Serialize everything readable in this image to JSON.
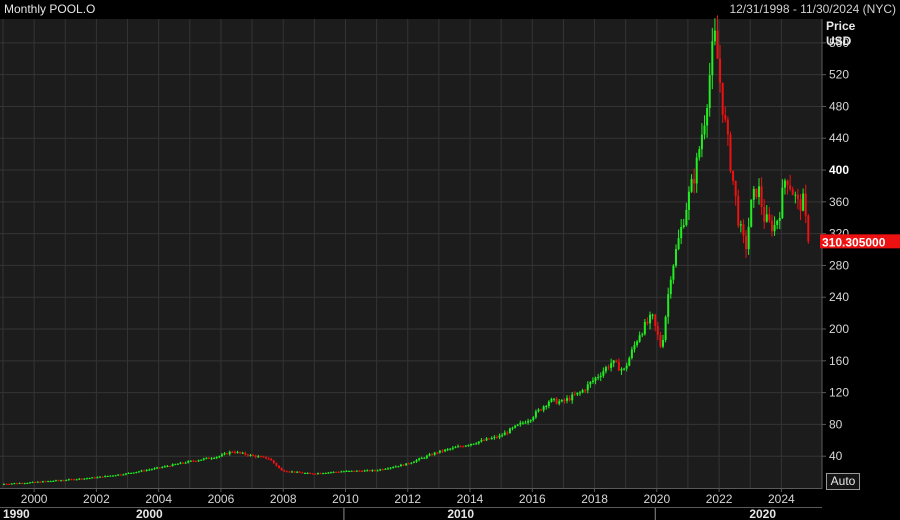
{
  "header": {
    "title": "Monthly POOL.O",
    "range": "12/31/1998 - 11/30/2024 (NYC)"
  },
  "axis": {
    "price_label": "Price",
    "currency_label": "USD",
    "auto_label": "Auto"
  },
  "colors": {
    "background": "#000000",
    "plot": "#1c1c1c",
    "grid": "#343434",
    "up": "#22ee22",
    "down": "#ee1111",
    "last_tag": "#ee1111"
  },
  "chart_data": {
    "type": "candlestick",
    "title": "Monthly POOL.O",
    "ylabel": "Price USD",
    "ylim": [
      0,
      590
    ],
    "yticks": [
      40,
      80,
      120,
      160,
      200,
      240,
      280,
      320,
      360,
      400,
      440,
      480,
      520,
      560
    ],
    "yticks_bold": [
      400
    ],
    "xlim": [
      1999.0,
      2024.92
    ],
    "xticks": [
      "2000",
      "2002",
      "2004",
      "2006",
      "2008",
      "2010",
      "2012",
      "2014",
      "2016",
      "2018",
      "2020",
      "2022",
      "2024"
    ],
    "decades": [
      {
        "label": "1990",
        "x": 1999.0
      },
      {
        "label": "2000",
        "x": 2003.7
      },
      {
        "label": "2010",
        "x": 2013.7
      },
      {
        "label": "2020",
        "x": 2023.4
      }
    ],
    "decade_dividers": [
      2009.95,
      2019.95
    ],
    "last_value": "310.305000",
    "last_price": 310.3,
    "grid": true,
    "anchors": [
      [
        1999.0,
        5
      ],
      [
        2000.0,
        7
      ],
      [
        2001.0,
        10
      ],
      [
        2002.0,
        13
      ],
      [
        2003.0,
        18
      ],
      [
        2004.0,
        25
      ],
      [
        2005.0,
        33
      ],
      [
        2006.0,
        40
      ],
      [
        2006.4,
        46
      ],
      [
        2007.0,
        41
      ],
      [
        2007.6,
        37
      ],
      [
        2008.0,
        22
      ],
      [
        2008.9,
        18
      ],
      [
        2009.3,
        19
      ],
      [
        2010.0,
        21
      ],
      [
        2011.0,
        22
      ],
      [
        2012.0,
        30
      ],
      [
        2013.0,
        45
      ],
      [
        2014.0,
        55
      ],
      [
        2015.0,
        65
      ],
      [
        2016.0,
        88
      ],
      [
        2016.6,
        110
      ],
      [
        2017.0,
        108
      ],
      [
        2017.6,
        120
      ],
      [
        2018.0,
        135
      ],
      [
        2018.6,
        158
      ],
      [
        2019.0,
        148
      ],
      [
        2019.5,
        195
      ],
      [
        2019.9,
        215
      ],
      [
        2020.2,
        175
      ],
      [
        2020.5,
        270
      ],
      [
        2020.8,
        320
      ],
      [
        2021.0,
        355
      ],
      [
        2021.3,
        400
      ],
      [
        2021.6,
        470
      ],
      [
        2021.9,
        570
      ],
      [
        2022.0,
        540
      ],
      [
        2022.2,
        470
      ],
      [
        2022.45,
        400
      ],
      [
        2022.7,
        330
      ],
      [
        2022.9,
        300
      ],
      [
        2023.1,
        360
      ],
      [
        2023.3,
        380
      ],
      [
        2023.5,
        340
      ],
      [
        2023.7,
        330
      ],
      [
        2023.85,
        330
      ],
      [
        2024.0,
        350
      ],
      [
        2024.2,
        395
      ],
      [
        2024.4,
        375
      ],
      [
        2024.6,
        355
      ],
      [
        2024.75,
        360
      ],
      [
        2024.92,
        310
      ]
    ]
  }
}
